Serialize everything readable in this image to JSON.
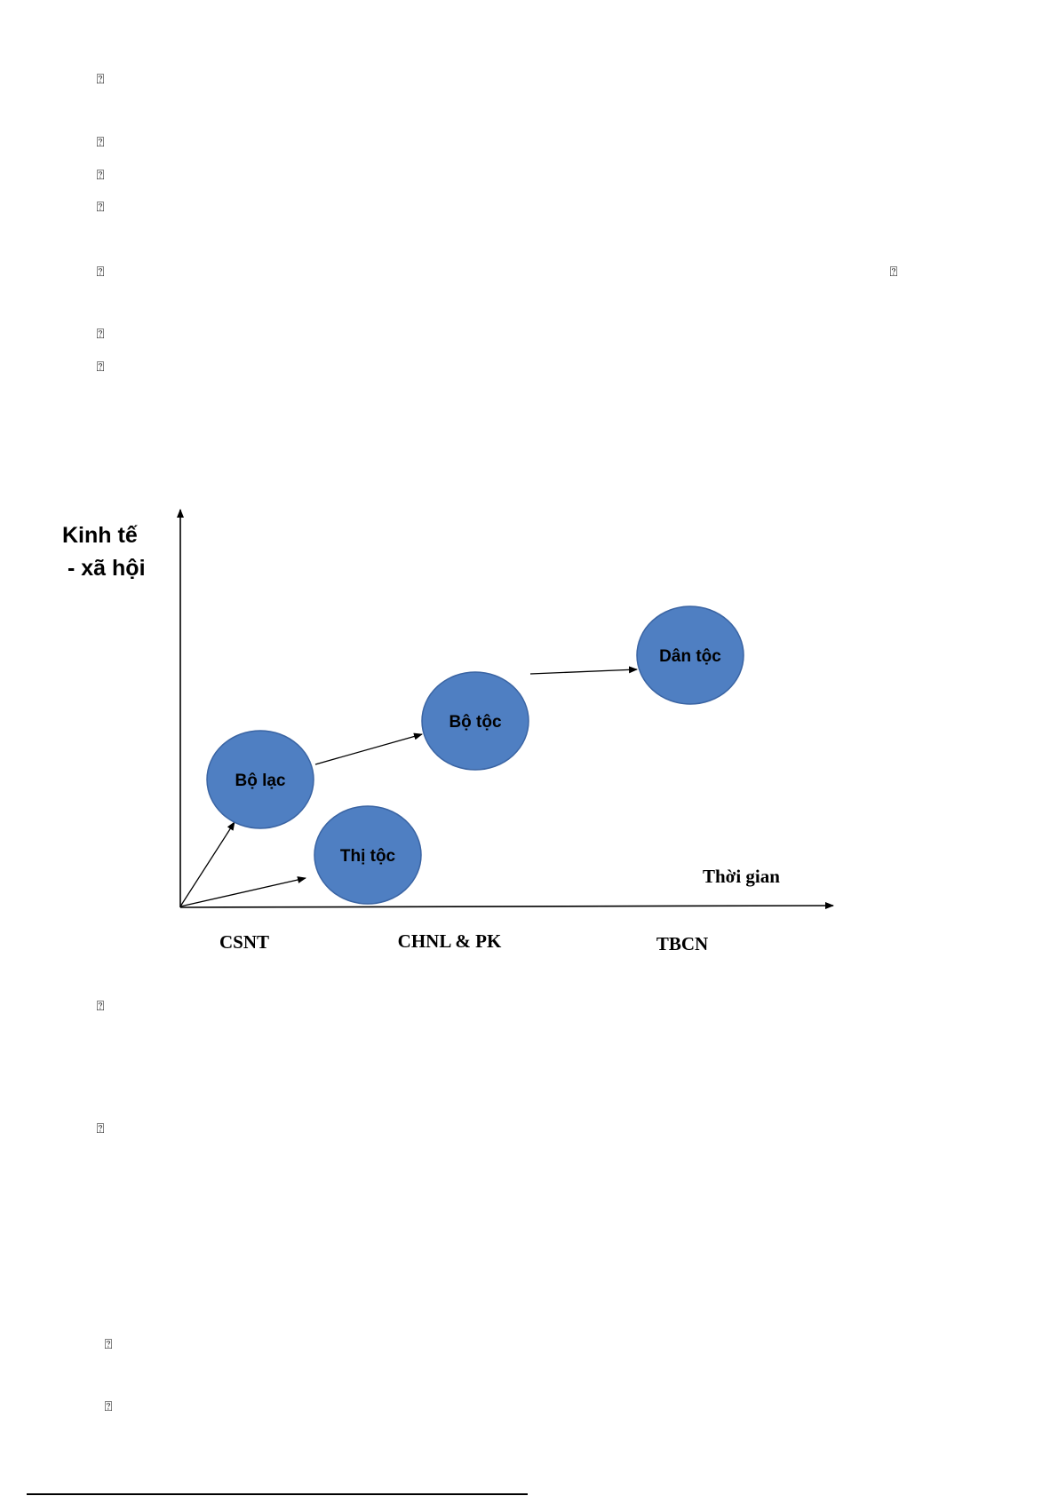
{
  "page": {
    "missing_glyph": "⍰"
  },
  "diagram": {
    "y_axis_title": [
      "Kinh tế",
      "- xã hội"
    ],
    "x_axis_title": "Thời gian",
    "nodes": [
      {
        "label": "Thị tộc"
      },
      {
        "label": "Bộ lạc"
      },
      {
        "label": "Bộ tộc"
      },
      {
        "label": "Dân tộc"
      }
    ],
    "eras": [
      "CSNT",
      "CHNL & PK",
      "TBCN"
    ],
    "colors": {
      "node_fill": "#4f7fc2",
      "node_stroke": "#3a64a3",
      "line": "#000000"
    }
  }
}
